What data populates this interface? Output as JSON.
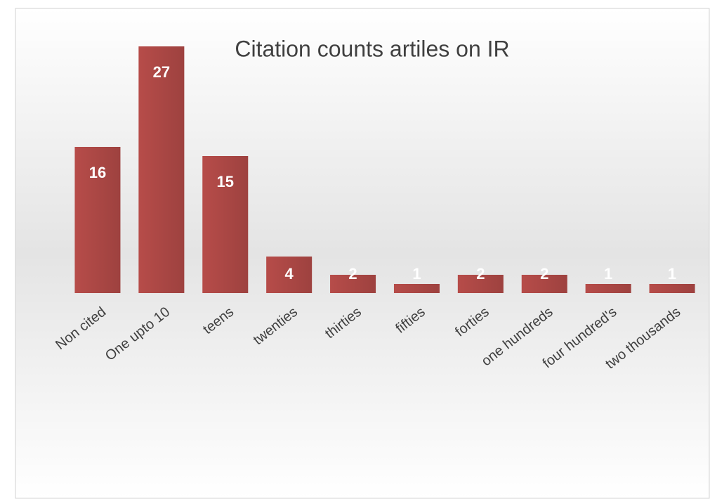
{
  "chart_data": {
    "type": "bar",
    "title": "Citation counts  artiles on IR",
    "categories": [
      "Non cited",
      "One upto 10",
      "teens",
      "twenties",
      "thirties",
      "fifties",
      "forties",
      "one hundreds",
      "four hundred's",
      "two thousands"
    ],
    "values": [
      16,
      27,
      15,
      4,
      2,
      1,
      2,
      2,
      1,
      1
    ],
    "color": "#c0504d",
    "ylim": [
      0,
      28
    ]
  }
}
